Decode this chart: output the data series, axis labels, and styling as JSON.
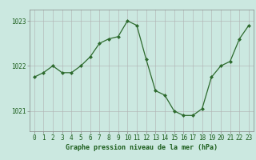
{
  "x": [
    0,
    1,
    2,
    3,
    4,
    5,
    6,
    7,
    8,
    9,
    10,
    11,
    12,
    13,
    14,
    15,
    16,
    17,
    18,
    19,
    20,
    21,
    22,
    23
  ],
  "y": [
    1021.75,
    1021.85,
    1022.0,
    1021.85,
    1021.85,
    1022.0,
    1022.2,
    1022.5,
    1022.6,
    1022.65,
    1023.0,
    1022.9,
    1022.15,
    1021.45,
    1021.35,
    1021.0,
    1020.9,
    1020.9,
    1021.05,
    1021.75,
    1022.0,
    1022.1,
    1022.6,
    1022.9
  ],
  "line_color": "#2d6a2d",
  "marker": "D",
  "marker_size": 2.0,
  "bg_color": "#cbe8e0",
  "grid_color": "#b0b0b0",
  "xlabel": "Graphe pression niveau de la mer (hPa)",
  "xlabel_fontsize": 6.0,
  "xlabel_color": "#1a5c1a",
  "tick_color": "#1a5c1a",
  "tick_fontsize": 5.5,
  "ylabel_ticks": [
    1021,
    1022,
    1023
  ],
  "ylim": [
    1020.55,
    1023.25
  ],
  "xlim": [
    -0.5,
    23.5
  ],
  "spine_color": "#888888"
}
